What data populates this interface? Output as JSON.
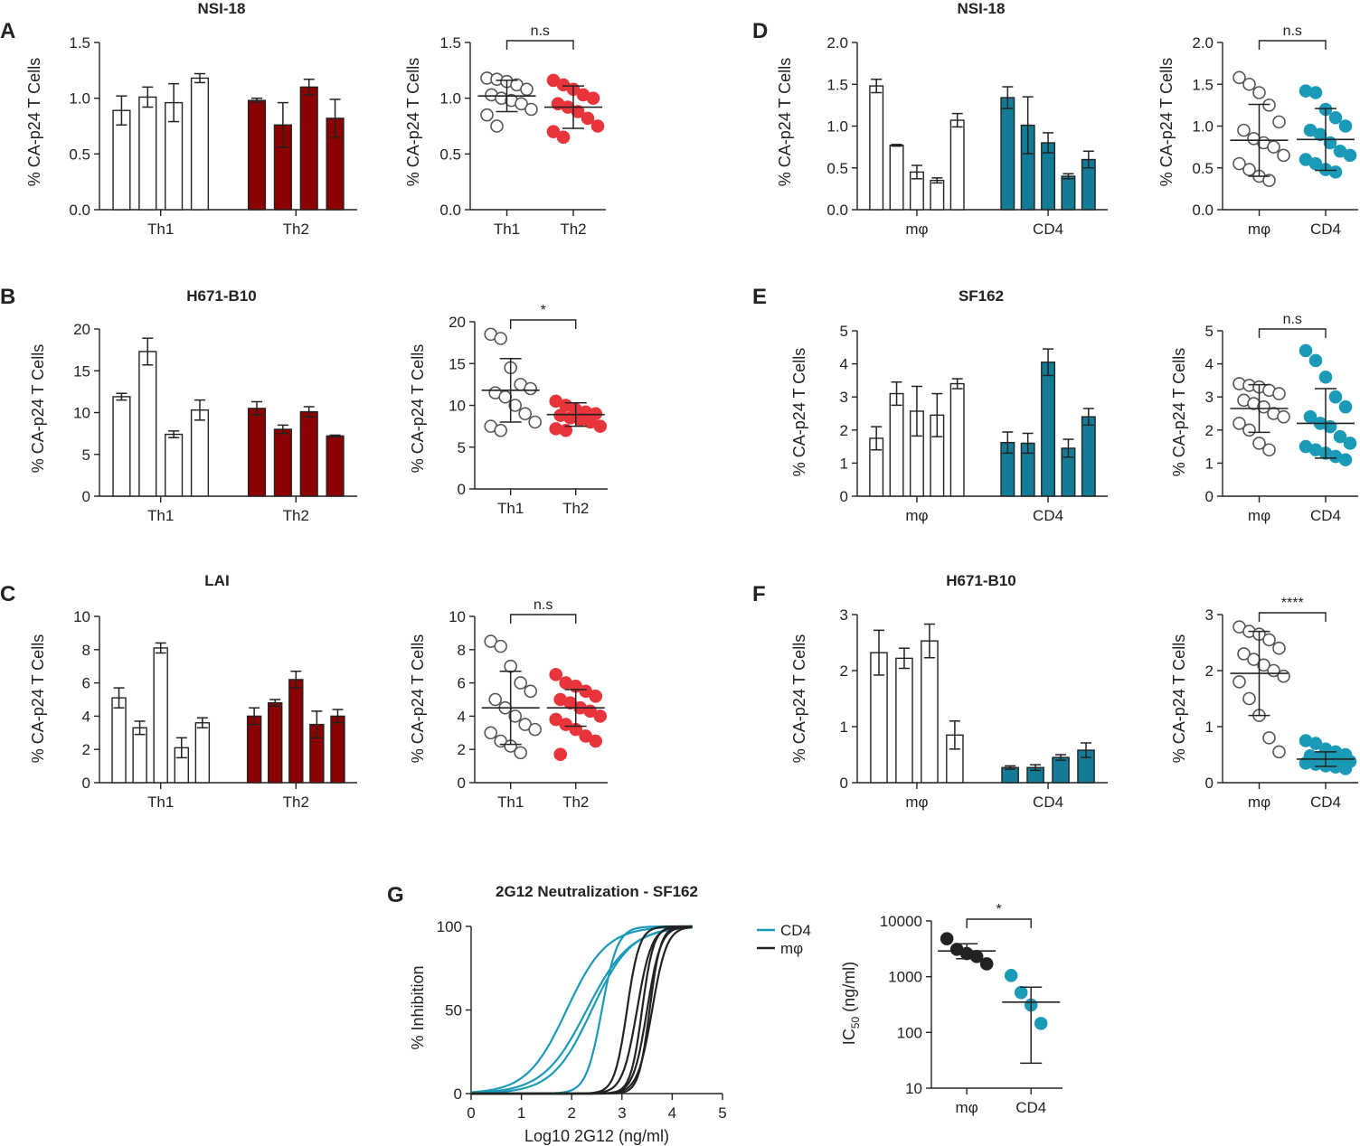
{
  "colors": {
    "th2": "#8b0000",
    "cd4": "#137b96",
    "dotred": "#e8343a",
    "dotblue": "#1b9ab8",
    "black": "#222222"
  },
  "ylabel_pct": "% CA-p24 T Cells",
  "chart_data": [
    {
      "panel_id": "A",
      "type": "bar",
      "panel_label": "A",
      "title": "NSI-18",
      "group_labels": [
        "Th1",
        "Th2"
      ],
      "fill_colors": [
        "#ffffff",
        "#8b0000"
      ],
      "groups": [
        {
          "name": "Th1",
          "values": [
            0.89,
            1.01,
            0.96,
            1.18
          ],
          "errors": [
            0.13,
            0.09,
            0.17,
            0.04
          ]
        },
        {
          "name": "Th2",
          "values": [
            0.98,
            0.76,
            1.1,
            0.82
          ],
          "errors": [
            0.02,
            0.2,
            0.07,
            0.17
          ]
        }
      ],
      "ylim": [
        0,
        1.5
      ],
      "yticks": [
        "0.0",
        "0.5",
        "1.0",
        "1.5"
      ]
    },
    {
      "panel_id": "A2",
      "type": "scatter",
      "title": "",
      "group_labels": [
        "Th1",
        "Th2"
      ],
      "styles": [
        "open",
        "red"
      ],
      "points": [
        [
          1.18,
          1.17,
          1.15,
          1.12,
          1.08,
          1.03,
          1.0,
          0.98,
          0.95,
          0.9,
          0.85,
          0.75
        ],
        [
          1.16,
          1.12,
          1.08,
          1.03,
          1.0,
          0.95,
          0.92,
          0.88,
          0.82,
          0.75,
          0.7,
          0.65
        ]
      ],
      "means": [
        1.02,
        0.92
      ],
      "sds": [
        0.14,
        0.19
      ],
      "ylim": [
        0,
        1.5
      ],
      "yticks": [
        "0.0",
        "0.5",
        "1.0",
        "1.5"
      ],
      "sig_label": "n.s"
    },
    {
      "panel_id": "B",
      "type": "bar",
      "panel_label": "B",
      "title": "H671-B10",
      "group_labels": [
        "Th1",
        "Th2"
      ],
      "fill_colors": [
        "#ffffff",
        "#8b0000"
      ],
      "groups": [
        {
          "name": "Th1",
          "values": [
            11.9,
            17.3,
            7.4,
            10.3
          ],
          "errors": [
            0.4,
            1.6,
            0.4,
            1.2
          ]
        },
        {
          "name": "Th2",
          "values": [
            10.5,
            8.0,
            10.1,
            7.2
          ],
          "errors": [
            0.8,
            0.5,
            0.6,
            0.1
          ]
        }
      ],
      "ylim": [
        0,
        20
      ],
      "yticks": [
        "0",
        "5",
        "10",
        "15",
        "20"
      ]
    },
    {
      "panel_id": "B2",
      "type": "scatter",
      "title": "",
      "group_labels": [
        "Th1",
        "Th2"
      ],
      "styles": [
        "open",
        "red"
      ],
      "points": [
        [
          18.5,
          18.0,
          14.5,
          12.5,
          12.0,
          11.5,
          11.0,
          10.0,
          9.0,
          8.0,
          7.5,
          7.0
        ],
        [
          10.5,
          10.0,
          9.5,
          9.2,
          9.0,
          8.8,
          8.5,
          8.3,
          8.0,
          7.5,
          7.2,
          7.0
        ]
      ],
      "means": [
        11.8,
        8.9
      ],
      "sds": [
        3.8,
        1.4
      ],
      "ylim": [
        0,
        20
      ],
      "yticks": [
        "0",
        "5",
        "10",
        "15",
        "20"
      ],
      "sig_label": "*"
    },
    {
      "panel_id": "C",
      "type": "bar",
      "panel_label": "C",
      "title": "LAI",
      "group_labels": [
        "Th1",
        "Th2"
      ],
      "fill_colors": [
        "#ffffff",
        "#8b0000"
      ],
      "groups": [
        {
          "name": "Th1",
          "values": [
            5.1,
            3.3,
            8.1,
            2.1,
            3.6
          ],
          "errors": [
            0.6,
            0.4,
            0.3,
            0.6,
            0.3
          ]
        },
        {
          "name": "Th2",
          "values": [
            4.0,
            4.8,
            6.2,
            3.5,
            4.0
          ],
          "errors": [
            0.5,
            0.2,
            0.5,
            0.8,
            0.4
          ]
        }
      ],
      "ylim": [
        0,
        10
      ],
      "yticks": [
        "0",
        "2",
        "4",
        "6",
        "8",
        "10"
      ]
    },
    {
      "panel_id": "C2",
      "type": "scatter",
      "title": "",
      "group_labels": [
        "Th1",
        "Th2"
      ],
      "styles": [
        "open",
        "red"
      ],
      "points": [
        [
          8.5,
          8.2,
          7.0,
          6.0,
          5.5,
          5.0,
          4.5,
          4.0,
          3.5,
          3.2,
          3.0,
          2.5,
          2.2,
          1.8
        ],
        [
          6.5,
          6.0,
          5.8,
          5.5,
          5.2,
          5.0,
          4.8,
          4.5,
          4.3,
          4.0,
          3.8,
          3.5,
          3.2,
          2.8,
          2.5,
          1.7
        ]
      ],
      "means": [
        4.5,
        4.5
      ],
      "sds": [
        2.2,
        1.1
      ],
      "ylim": [
        0,
        10
      ],
      "yticks": [
        "0",
        "2",
        "4",
        "6",
        "8",
        "10"
      ],
      "sig_label": "n.s"
    },
    {
      "panel_id": "D",
      "type": "bar",
      "panel_label": "D",
      "title": "NSI-18",
      "group_labels": [
        "mφ",
        "CD4"
      ],
      "fill_colors": [
        "#ffffff",
        "#137b96"
      ],
      "groups": [
        {
          "name": "mφ",
          "values": [
            1.48,
            0.77,
            0.45,
            0.35,
            1.07
          ],
          "errors": [
            0.08,
            0.01,
            0.08,
            0.03,
            0.08
          ]
        },
        {
          "name": "CD4",
          "values": [
            1.34,
            1.01,
            0.8,
            0.4,
            0.6
          ],
          "errors": [
            0.13,
            0.34,
            0.12,
            0.03,
            0.1
          ]
        }
      ],
      "ylim": [
        0,
        2.0
      ],
      "yticks": [
        "0.0",
        "0.5",
        "1.0",
        "1.5",
        "2.0"
      ]
    },
    {
      "panel_id": "D2",
      "type": "scatter",
      "title": "",
      "group_labels": [
        "mφ",
        "CD4"
      ],
      "styles": [
        "open",
        "blue"
      ],
      "points": [
        [
          1.58,
          1.5,
          1.4,
          1.25,
          1.05,
          0.95,
          0.85,
          0.8,
          0.75,
          0.65,
          0.55,
          0.48,
          0.4,
          0.35
        ],
        [
          1.42,
          1.4,
          1.2,
          1.1,
          1.0,
          0.95,
          0.9,
          0.8,
          0.7,
          0.65,
          0.6,
          0.55,
          0.48,
          0.45
        ]
      ],
      "means": [
        0.83,
        0.84
      ],
      "sds": [
        0.43,
        0.37
      ],
      "ylim": [
        0,
        2.0
      ],
      "yticks": [
        "0.0",
        "0.5",
        "1.0",
        "1.5",
        "2.0"
      ],
      "sig_label": "n.s"
    },
    {
      "panel_id": "E",
      "type": "bar",
      "panel_label": "E",
      "title": "SF162",
      "group_labels": [
        "mφ",
        "CD4"
      ],
      "fill_colors": [
        "#ffffff",
        "#137b96"
      ],
      "groups": [
        {
          "name": "mφ",
          "values": [
            1.75,
            3.1,
            2.57,
            2.45,
            3.4
          ],
          "errors": [
            0.35,
            0.35,
            0.75,
            0.65,
            0.15
          ]
        },
        {
          "name": "CD4",
          "values": [
            1.62,
            1.6,
            4.05,
            1.45,
            2.4
          ],
          "errors": [
            0.32,
            0.3,
            0.4,
            0.27,
            0.25
          ]
        }
      ],
      "ylim": [
        0,
        5
      ],
      "yticks": [
        "0",
        "1",
        "2",
        "3",
        "4",
        "5"
      ]
    },
    {
      "panel_id": "E2",
      "type": "scatter",
      "title": "",
      "group_labels": [
        "mφ",
        "CD4"
      ],
      "styles": [
        "open",
        "blue"
      ],
      "points": [
        [
          3.4,
          3.35,
          3.3,
          3.2,
          3.1,
          2.9,
          2.8,
          2.7,
          2.5,
          2.4,
          2.2,
          2.0,
          1.6,
          1.4
        ],
        [
          4.4,
          4.1,
          3.6,
          3.0,
          2.7,
          2.4,
          2.2,
          2.1,
          1.8,
          1.6,
          1.5,
          1.4,
          1.3,
          1.2,
          1.1
        ]
      ],
      "means": [
        2.65,
        2.2
      ],
      "sds": [
        0.72,
        1.05
      ],
      "ylim": [
        0,
        5
      ],
      "yticks": [
        "0",
        "1",
        "2",
        "3",
        "4",
        "5"
      ],
      "sig_label": "n.s"
    },
    {
      "panel_id": "F",
      "type": "bar",
      "panel_label": "F",
      "title": "H671-B10",
      "group_labels": [
        "mφ",
        "CD4"
      ],
      "fill_colors": [
        "#ffffff",
        "#137b96"
      ],
      "groups": [
        {
          "name": "mφ",
          "values": [
            2.32,
            2.22,
            2.53,
            0.85
          ],
          "errors": [
            0.4,
            0.18,
            0.3,
            0.25
          ]
        },
        {
          "name": "CD4",
          "values": [
            0.27,
            0.27,
            0.45,
            0.58
          ],
          "errors": [
            0.03,
            0.05,
            0.05,
            0.13
          ]
        }
      ],
      "ylim": [
        0,
        3
      ],
      "yticks": [
        "0",
        "1",
        "2",
        "3"
      ]
    },
    {
      "panel_id": "F2",
      "type": "scatter",
      "title": "",
      "group_labels": [
        "mφ",
        "CD4"
      ],
      "styles": [
        "open",
        "blue"
      ],
      "points": [
        [
          2.78,
          2.7,
          2.65,
          2.55,
          2.4,
          2.3,
          2.2,
          2.1,
          2.0,
          1.9,
          1.8,
          1.5,
          1.2,
          0.8,
          0.55
        ],
        [
          0.75,
          0.7,
          0.6,
          0.55,
          0.5,
          0.48,
          0.45,
          0.42,
          0.4,
          0.38,
          0.35,
          0.33,
          0.3,
          0.28,
          0.25
        ]
      ],
      "means": [
        1.95,
        0.42
      ],
      "sds": [
        0.75,
        0.13
      ],
      "ylim": [
        0,
        3
      ],
      "yticks": [
        "0",
        "1",
        "2",
        "3"
      ],
      "sig_label": "****"
    },
    {
      "panel_id": "G",
      "type": "line",
      "panel_label": "G",
      "title": "2G12 Neutralization - SF162",
      "xlabel": "Log10 2G12 (ng/ml)",
      "ylabel": "% Inhibition",
      "xlim": [
        0,
        5
      ],
      "ylim": [
        0,
        100
      ],
      "xticks": [
        "0",
        "1",
        "2",
        "3",
        "4",
        "5"
      ],
      "yticks": [
        "0",
        "50",
        "100"
      ],
      "series": [
        {
          "name": "CD4",
          "color": "#1b9ab8",
          "curves": [
            {
              "ic50_log": 1.9,
              "hill": 1.1
            },
            {
              "ic50_log": 2.3,
              "hill": 1.0
            },
            {
              "ic50_log": 2.4,
              "hill": 1.1
            },
            {
              "ic50_log": 2.6,
              "hill": 2.8
            }
          ]
        },
        {
          "name": "mφ",
          "color": "#222222",
          "curves": [
            {
              "ic50_log": 3.1,
              "hill": 3.5
            },
            {
              "ic50_log": 3.3,
              "hill": 3.0
            },
            {
              "ic50_log": 3.4,
              "hill": 3.8
            },
            {
              "ic50_log": 3.5,
              "hill": 3.2
            },
            {
              "ic50_log": 3.6,
              "hill": 3.0
            },
            {
              "ic50_log": 3.55,
              "hill": 4.0
            }
          ]
        }
      ],
      "legend": [
        {
          "label": "CD4",
          "color": "#1b9ab8"
        },
        {
          "label": "mφ",
          "color": "#222222"
        }
      ]
    },
    {
      "panel_id": "G2",
      "type": "scatter",
      "title": "",
      "group_labels": [
        "mφ",
        "CD4"
      ],
      "styles": [
        "black",
        "blue"
      ],
      "log_scale": true,
      "ylabel": "IC50 (ng/ml)",
      "points": [
        [
          4800,
          3100,
          2600,
          2300,
          1700
        ],
        [
          1050,
          520,
          310,
          145
        ]
      ],
      "means": [
        2900,
        350
      ],
      "sds_low": [
        2100,
        28
      ],
      "sds_high": [
        3900,
        650
      ],
      "ylim": [
        10,
        10000
      ],
      "yticks": [
        "10",
        "100",
        "1000",
        "10000"
      ],
      "sig_label": "*"
    }
  ]
}
